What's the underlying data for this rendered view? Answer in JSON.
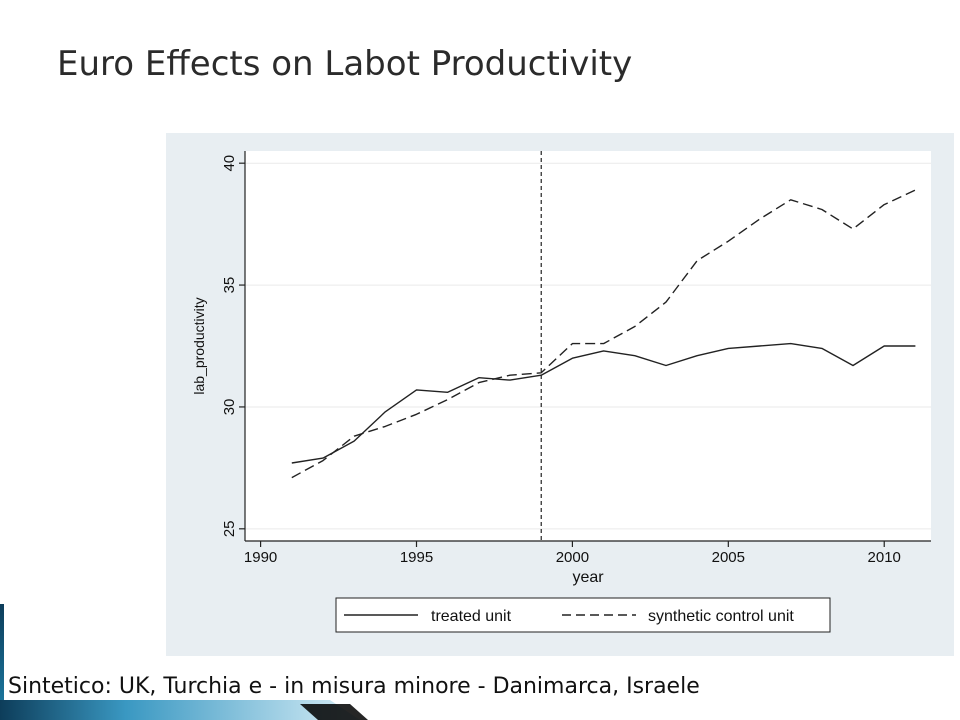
{
  "slide": {
    "title": "Euro Effects on Labot Productivity",
    "footer": "Sintetico: UK, Turchia e - in misura minore - Danimarca, Israele"
  },
  "colors": {
    "panel_background": "#e8eef2",
    "plot_background": "#ffffff",
    "line_color": "#222222",
    "footer_bar_dark": "#0d3d5a",
    "footer_bar_light": "#9fd3ea"
  },
  "chart_data": {
    "type": "line",
    "xlabel": "year",
    "ylabel": "lab_productivity",
    "xlim": [
      1989.5,
      2011.5
    ],
    "ylim": [
      24.5,
      40.5
    ],
    "xticks": [
      1990,
      1995,
      2000,
      2005,
      2010
    ],
    "yticks": [
      25,
      30,
      35,
      40
    ],
    "grid": "horizontal",
    "vline": 1999,
    "legend_position": "bottom",
    "x": [
      1991,
      1992,
      1993,
      1994,
      1995,
      1996,
      1997,
      1998,
      1999,
      2000,
      2001,
      2002,
      2003,
      2004,
      2005,
      2006,
      2007,
      2008,
      2009,
      2010,
      2011
    ],
    "series": [
      {
        "name": "treated unit",
        "style": "solid",
        "values": [
          27.7,
          27.9,
          28.6,
          29.8,
          30.7,
          30.6,
          31.2,
          31.1,
          31.3,
          32.0,
          32.3,
          32.1,
          31.7,
          32.1,
          32.4,
          32.5,
          32.6,
          32.4,
          31.7,
          32.5,
          32.5
        ]
      },
      {
        "name": "synthetic control unit",
        "style": "dashed",
        "values": [
          27.1,
          27.8,
          28.8,
          29.2,
          29.7,
          30.3,
          31.0,
          31.3,
          31.4,
          32.6,
          32.6,
          33.3,
          34.3,
          36.0,
          36.8,
          37.7,
          38.5,
          38.1,
          37.3,
          38.3,
          38.9
        ]
      }
    ]
  }
}
